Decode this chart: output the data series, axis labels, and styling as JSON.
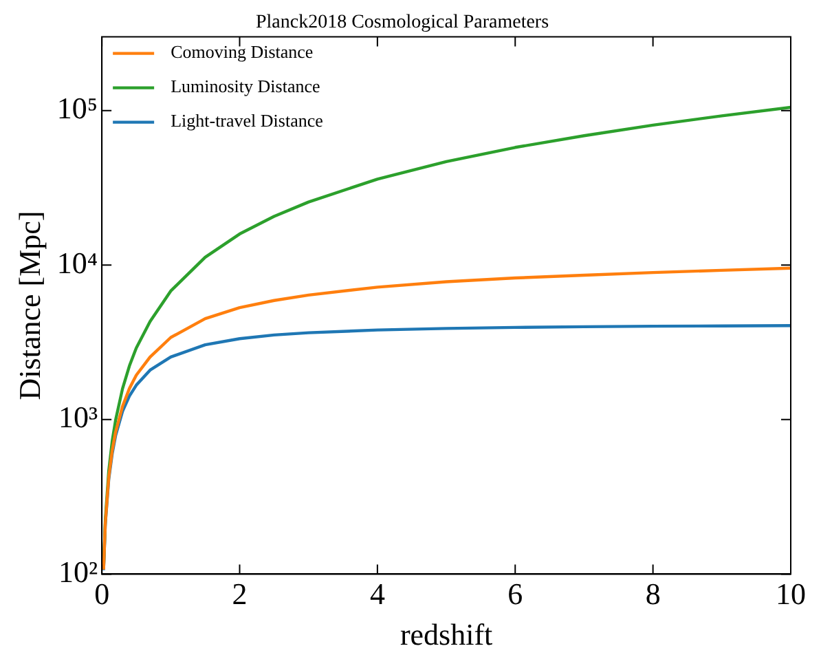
{
  "chart_data": {
    "type": "line",
    "title": "Planck2018 Cosmological Parameters",
    "xlabel": "redshift",
    "ylabel": "Distance [Mpc]",
    "x": [
      0.025,
      0.05,
      0.1,
      0.15,
      0.2,
      0.3,
      0.4,
      0.5,
      0.7,
      1,
      1.5,
      2,
      2.5,
      3,
      4,
      5,
      6,
      7,
      8,
      9,
      10
    ],
    "series": [
      {
        "name": "Comoving Distance",
        "color": "#ff7f0e",
        "values": [
          107,
          213,
          423,
          630,
          830,
          1220,
          1590,
          1940,
          2540,
          3400,
          4500,
          5300,
          5900,
          6400,
          7200,
          7800,
          8250,
          8600,
          8950,
          9250,
          9550
        ]
      },
      {
        "name": "Luminosity Distance",
        "color": "#2ca02c",
        "values": [
          110,
          224,
          465,
          725,
          996,
          1586,
          2226,
          2910,
          4318,
          6800,
          11250,
          15900,
          20650,
          25600,
          36000,
          46800,
          57750,
          68800,
          80550,
          92500,
          105050
        ]
      },
      {
        "name": "Light-travel Distance",
        "color": "#1f77b4",
        "values": [
          106,
          210,
          410,
          600,
          790,
          1130,
          1420,
          1670,
          2090,
          2540,
          3050,
          3340,
          3530,
          3650,
          3800,
          3890,
          3950,
          3990,
          4020,
          4040,
          4060
        ]
      }
    ],
    "xlim": [
      0,
      10
    ],
    "xticks": [
      0,
      2,
      4,
      6,
      8,
      10
    ],
    "log": "y",
    "ylim": [
      100,
      300000
    ],
    "yticks": [
      {
        "value": 100,
        "label": "10²"
      },
      {
        "value": 1000,
        "label": "10³"
      },
      {
        "value": 10000,
        "label": "10⁴"
      },
      {
        "value": 100000,
        "label": "10⁵"
      }
    ],
    "grid": false,
    "legend": "top left",
    "marker": "none",
    "line_style": "solid"
  }
}
